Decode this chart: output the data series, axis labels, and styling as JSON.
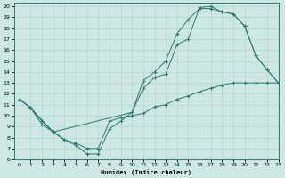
{
  "xlabel": "Humidex (Indice chaleur)",
  "xlim": [
    -0.5,
    23
  ],
  "ylim": [
    6,
    20.3
  ],
  "xticks": [
    0,
    1,
    2,
    3,
    4,
    5,
    6,
    7,
    8,
    9,
    10,
    11,
    12,
    13,
    14,
    15,
    16,
    17,
    18,
    19,
    20,
    21,
    22,
    23
  ],
  "yticks": [
    6,
    7,
    8,
    9,
    10,
    11,
    12,
    13,
    14,
    15,
    16,
    17,
    18,
    19,
    20
  ],
  "line_color": "#2a7a6e",
  "bg_color": "#cde8e2",
  "grid_color": "#b8d8d2",
  "line1_x": [
    0,
    1,
    2,
    3,
    4,
    5,
    6,
    7,
    8,
    9,
    10,
    11,
    12,
    13,
    14,
    15,
    16,
    17,
    18,
    19,
    20,
    21,
    22,
    23
  ],
  "line1_y": [
    11.5,
    10.7,
    9.2,
    8.5,
    7.8,
    7.3,
    6.5,
    6.5,
    8.8,
    9.5,
    10.3,
    13.2,
    14.0,
    15.0,
    17.5,
    18.8,
    19.8,
    19.8,
    19.5,
    19.3,
    18.2,
    15.5,
    14.2,
    13.0
  ],
  "line2_x": [
    0,
    1,
    2,
    3,
    4,
    5,
    6,
    7,
    8,
    9,
    10,
    11,
    12,
    13,
    14,
    15,
    16,
    17,
    18,
    19,
    20,
    21,
    22,
    23
  ],
  "line2_y": [
    11.5,
    10.7,
    9.5,
    8.5,
    7.8,
    7.5,
    7.0,
    7.0,
    9.5,
    9.8,
    10.0,
    10.2,
    10.8,
    11.0,
    11.5,
    11.8,
    12.2,
    12.5,
    12.8,
    13.0,
    13.0,
    13.0,
    13.0,
    13.0
  ],
  "line3_x": [
    0,
    1,
    3,
    10,
    11,
    12,
    13,
    14,
    15,
    16,
    17,
    18,
    19,
    20,
    21,
    22,
    23
  ],
  "line3_y": [
    11.5,
    10.7,
    8.5,
    10.3,
    12.5,
    13.5,
    13.8,
    16.5,
    17.0,
    19.9,
    20.0,
    19.5,
    19.3,
    18.2,
    15.5,
    14.2,
    13.0
  ]
}
